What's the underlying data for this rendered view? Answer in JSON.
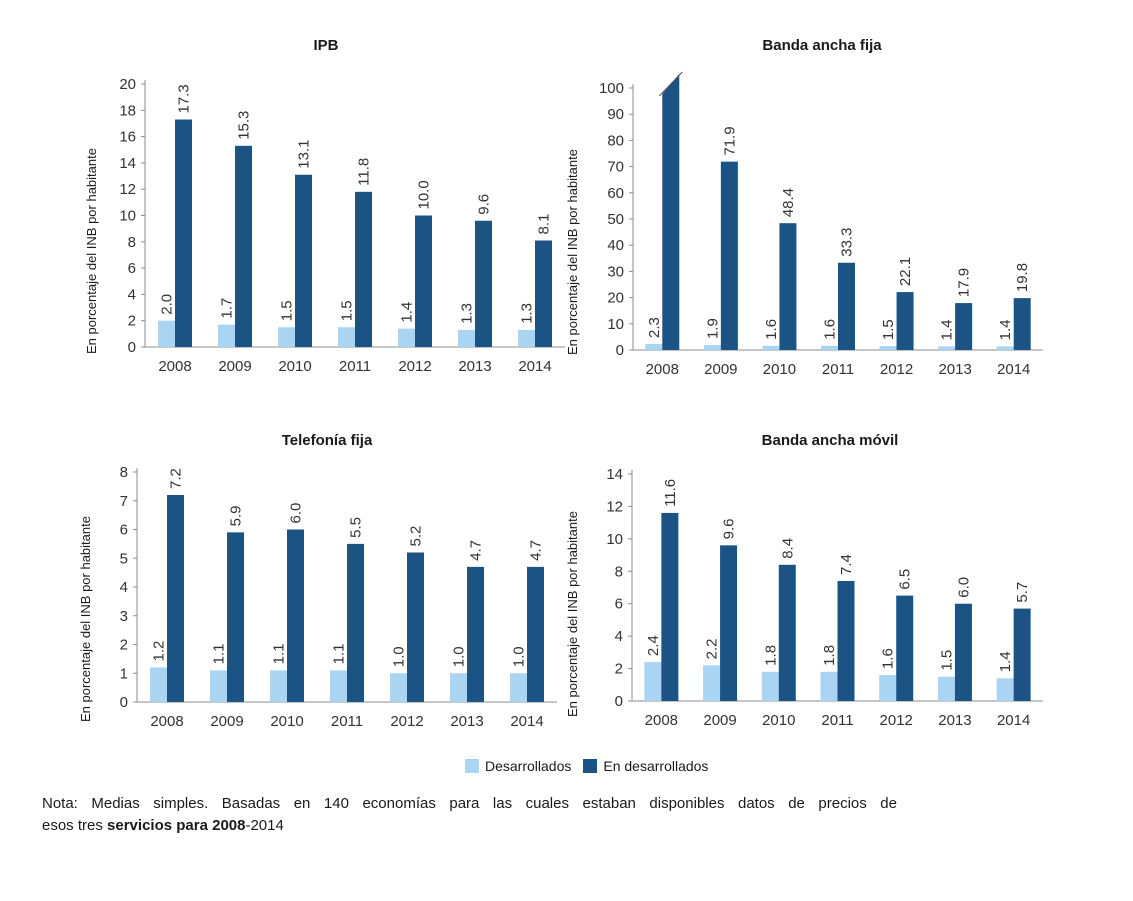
{
  "colors": {
    "developed": "#a9d5f3",
    "developing": "#1a5384",
    "axis": "#8c8c8c",
    "text": "#333333"
  },
  "legend": {
    "developed": "Desarrollados",
    "developing": "En desarrollados"
  },
  "note": {
    "line1": "Nota: Medias simples. Basadas en 140 economías para las cuales estaban disponibles datos de precios de",
    "line2_start": "esos tres ",
    "line2_bold": "servicios para 2008",
    "line2_end": "-2014"
  },
  "chart_data": [
    {
      "type": "bar",
      "title": "IPB",
      "ylabel": "En porcentaje del INB por habitante",
      "categories": [
        "2008",
        "2009",
        "2010",
        "2011",
        "2012",
        "2013",
        "2014"
      ],
      "ylim": [
        0,
        20
      ],
      "yticks": [
        "0",
        "2",
        "4",
        "6",
        "8",
        "10",
        "12",
        "14",
        "16",
        "18",
        "20"
      ],
      "series": [
        {
          "name": "Desarrollados",
          "values": [
            2.0,
            1.7,
            1.5,
            1.5,
            1.4,
            1.3,
            1.3
          ],
          "labels": [
            "2.0",
            "1.7",
            "1.5",
            "1.5",
            "1.4",
            "1.3",
            "1.3"
          ]
        },
        {
          "name": "En desarrollados",
          "values": [
            17.3,
            15.3,
            13.1,
            11.8,
            10.0,
            9.6,
            8.1
          ],
          "labels": [
            "17.3",
            "15.3",
            "13.1",
            "11.8",
            "10.0",
            "9.6",
            "8.1"
          ]
        }
      ]
    },
    {
      "type": "bar",
      "title": "Banda ancha fija",
      "ylabel": "En porcentaje del INB por habitante",
      "categories": [
        "2008",
        "2009",
        "2010",
        "2011",
        "2012",
        "2013",
        "2014"
      ],
      "ylim": [
        0,
        100
      ],
      "yticks": [
        "0",
        "10",
        "20",
        "30",
        "40",
        "50",
        "60",
        "70",
        "80",
        "90",
        "100"
      ],
      "broken_bar": {
        "series": 1,
        "index": 0
      },
      "series": [
        {
          "name": "Desarrollados",
          "values": [
            2.3,
            1.9,
            1.6,
            1.6,
            1.5,
            1.4,
            1.4
          ],
          "labels": [
            "2.3",
            "1.9",
            "1.6",
            "1.6",
            "1.5",
            "1.4",
            "1.4"
          ]
        },
        {
          "name": "En desarrollados",
          "values": [
            100,
            71.9,
            48.4,
            33.3,
            22.1,
            17.9,
            19.8
          ],
          "labels": [
            "",
            "71.9",
            "48.4",
            "33.3",
            "22.1",
            "17.9",
            "19.8"
          ]
        }
      ]
    },
    {
      "type": "bar",
      "title": "Telefonía fija",
      "ylabel": "En porcentaje del INB por habitante",
      "categories": [
        "2008",
        "2009",
        "2010",
        "2011",
        "2012",
        "2013",
        "2014"
      ],
      "ylim": [
        0,
        8
      ],
      "yticks": [
        "0",
        "1",
        "2",
        "3",
        "4",
        "5",
        "6",
        "7",
        "8"
      ],
      "series": [
        {
          "name": "Desarrollados",
          "values": [
            1.2,
            1.1,
            1.1,
            1.1,
            1.0,
            1.0,
            1.0
          ],
          "labels": [
            "1.2",
            "1.1",
            "1.1",
            "1.1",
            "1.0",
            "1.0",
            "1.0"
          ]
        },
        {
          "name": "En desarrollados",
          "values": [
            7.2,
            5.9,
            6.0,
            5.5,
            5.2,
            4.7,
            4.7
          ],
          "labels": [
            "7.2",
            "5.9",
            "6.0",
            "5.5",
            "5.2",
            "4.7",
            "4.7"
          ]
        }
      ]
    },
    {
      "type": "bar",
      "title": "Banda ancha móvil",
      "ylabel": "En porcentaje del INB por habitante",
      "categories": [
        "2008",
        "2009",
        "2010",
        "2011",
        "2012",
        "2013",
        "2014"
      ],
      "ylim": [
        0,
        14
      ],
      "yticks": [
        "0",
        "2",
        "4",
        "6",
        "8",
        "10",
        "12",
        "14"
      ],
      "series": [
        {
          "name": "Desarrollados",
          "values": [
            2.4,
            2.2,
            1.8,
            1.8,
            1.6,
            1.5,
            1.4
          ],
          "labels": [
            "2.4",
            "2.2",
            "1.8",
            "1.8",
            "1.6",
            "1.5",
            "1.4"
          ]
        },
        {
          "name": "En desarrollados",
          "values": [
            11.6,
            9.6,
            8.4,
            7.4,
            6.5,
            6.0,
            5.7
          ],
          "labels": [
            "11.6",
            "9.6",
            "8.4",
            "7.4",
            "6.5",
            "6.0",
            "5.7"
          ]
        }
      ]
    }
  ]
}
